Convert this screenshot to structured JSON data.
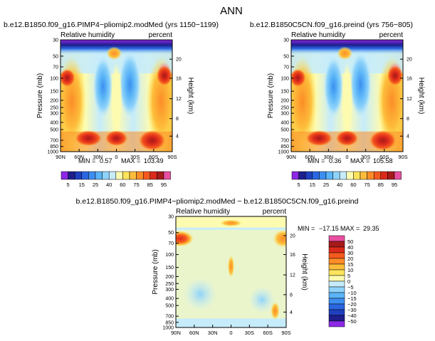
{
  "page_title": "ANN",
  "chart_data": [
    {
      "type": "heatmap",
      "title": "b.e12.B1850.f09_g16.PIMP4−pliomip2.modMed (yrs 1150−1199)",
      "variable_label": "Relative humidity",
      "units_label": "percent",
      "xlabel": "",
      "ylabel": "Pressure (mb)",
      "y2label": "Height (km)",
      "x_ticks": [
        "90N",
        "60N",
        "30N",
        "0",
        "30S",
        "60S",
        "90S"
      ],
      "y_ticks": [
        "30",
        "50",
        "70",
        "100",
        "150",
        "200",
        "250",
        "300",
        "400",
        "500",
        "700",
        "850",
        "1000"
      ],
      "y2_ticks": [
        "20",
        "16",
        "12",
        "8",
        "4"
      ],
      "stats": {
        "min_label": "MIN =",
        "min": "0.57",
        "max_label": "MAX =",
        "max": "103.49"
      }
    },
    {
      "type": "heatmap",
      "title": "b.e12.B1850C5CN.f09_g16.preind (yrs 756−805)",
      "variable_label": "Relative humidity",
      "units_label": "percent",
      "xlabel": "",
      "ylabel": "Pressure (mb)",
      "y2label": "Height (km)",
      "x_ticks": [
        "90N",
        "60N",
        "30N",
        "0",
        "30S",
        "60S",
        "90S"
      ],
      "y_ticks": [
        "30",
        "50",
        "70",
        "100",
        "150",
        "200",
        "250",
        "300",
        "400",
        "500",
        "700",
        "850",
        "1000"
      ],
      "y2_ticks": [
        "20",
        "16",
        "12",
        "8",
        "4"
      ],
      "stats": {
        "min_label": "MIN =",
        "min": "0.36",
        "max_label": "MAX =",
        "max": "105.58"
      }
    },
    {
      "type": "heatmap",
      "title": "b.e12.B1850.f09_g16.PIMP4−pliomip2.modMed − b.e12.B1850C5CN.f09_g16.preind",
      "variable_label": "Relative humidity",
      "units_label": "percent",
      "xlabel": "",
      "ylabel": "Pressure (mb)",
      "y2label": "Height (km)",
      "x_ticks": [
        "90N",
        "60N",
        "30N",
        "0",
        "30S",
        "60S",
        "90S"
      ],
      "y_ticks": [
        "30",
        "50",
        "70",
        "100",
        "150",
        "200",
        "250",
        "300",
        "400",
        "500",
        "700",
        "850",
        "1000"
      ],
      "y2_ticks": [
        "20",
        "16",
        "12",
        "8",
        "4"
      ],
      "stats": {
        "min_label": "MIN =",
        "min": "−17.15",
        "max_label": "MAX =",
        "max": "29.35"
      }
    }
  ],
  "colorbar_horizontal": {
    "labels": [
      "5",
      "15",
      "25",
      "40",
      "60",
      "75",
      "85",
      "95"
    ],
    "colors": [
      "#8c28e6",
      "#1e1e8c",
      "#1f3fbf",
      "#2a66e0",
      "#3d8ef0",
      "#5ab4f7",
      "#8fd3fa",
      "#c6ecfb",
      "#fdfbb0",
      "#fde45c",
      "#fdbd3a",
      "#fc8d28",
      "#f55a1f",
      "#dc2a1a",
      "#a51a1a",
      "#e94fa0"
    ]
  },
  "colorbar_vertical": {
    "labels": [
      "50",
      "40",
      "30",
      "20",
      "15",
      "10",
      "5",
      "0",
      "−5",
      "−10",
      "−15",
      "−20",
      "−30",
      "−40",
      "−50"
    ],
    "colors": [
      "#e94fa0",
      "#a51a1a",
      "#dc2a1a",
      "#f55a1f",
      "#fc8d28",
      "#fdbd3a",
      "#fde45c",
      "#fdfbb0",
      "#c6ecfb",
      "#8fd3fa",
      "#5ab4f7",
      "#3d8ef0",
      "#2a66e0",
      "#1f3fbf",
      "#1e1e8c",
      "#8c28e6"
    ]
  }
}
